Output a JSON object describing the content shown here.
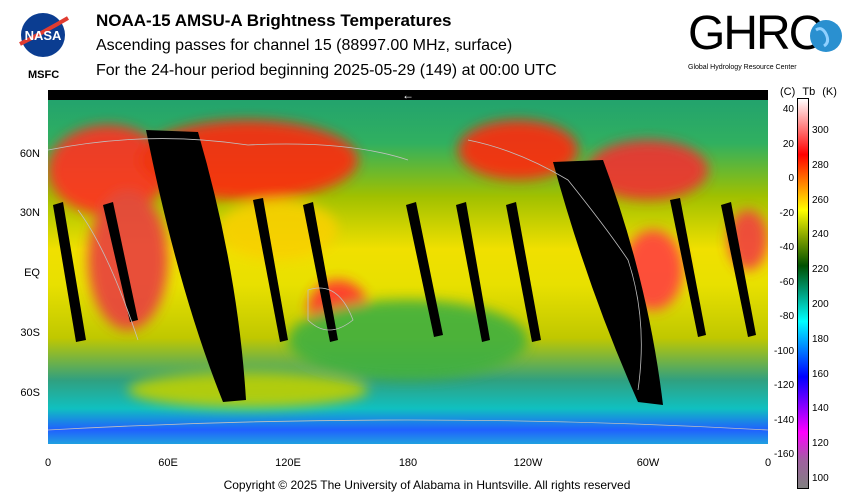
{
  "header": {
    "title": "NOAA-15 AMSU-A Brightness Temperatures",
    "subtitle": "Ascending passes for channel 15 (88997.00 MHz, surface)",
    "period": "For the 24-hour period beginning 2025-05-29 (149) at 00:00 UTC"
  },
  "logos": {
    "nasa": {
      "text": "NASA",
      "label": "MSFC"
    },
    "ghrc": {
      "text": "GHRC",
      "label": "Global Hydrology Resource Center"
    }
  },
  "map": {
    "lat_labels": [
      "60N",
      "30N",
      "EQ",
      "30S",
      "60S"
    ],
    "lon_labels": [
      "0",
      "60E",
      "120E",
      "180",
      "120W",
      "60W",
      "0"
    ],
    "date_line_arrow": "←"
  },
  "colorbar": {
    "header": {
      "c": "(C)",
      "tb": "Tb",
      "k": "(K)"
    },
    "celsius_ticks": [
      "40",
      "20",
      "0",
      "-20",
      "-40",
      "-60",
      "-80",
      "-100",
      "-120",
      "-140",
      "-160"
    ],
    "kelvin_ticks": [
      "300",
      "280",
      "260",
      "240",
      "220",
      "200",
      "180",
      "160",
      "140",
      "120",
      "100"
    ],
    "colors": [
      "#ffffff",
      "#ff8080",
      "#ff0000",
      "#ff8000",
      "#ffff00",
      "#80a000",
      "#005000",
      "#00a080",
      "#00ffff",
      "#0080ff",
      "#0000ff",
      "#8000ff",
      "#ff00ff",
      "#a060a0",
      "#808080"
    ]
  },
  "footer": {
    "copyright": "Copyright © 2025 The University of Alabama in Huntsville.  All rights reserved"
  }
}
